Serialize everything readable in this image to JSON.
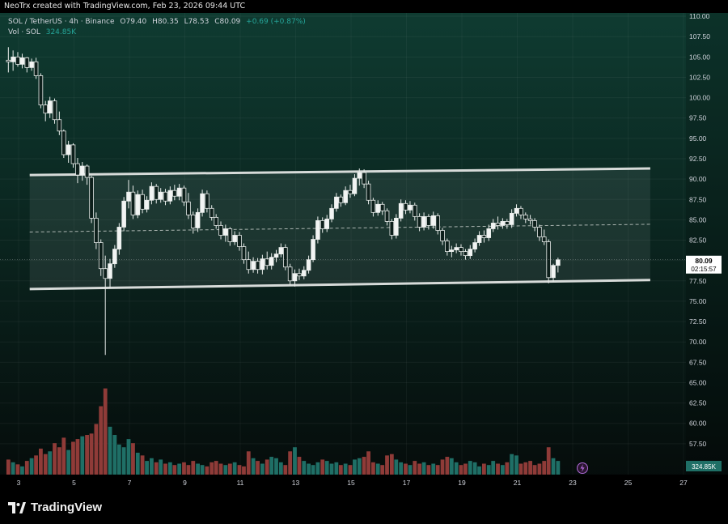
{
  "header": {
    "credit": "NeoTrx created with TradingView.com, Feb 23, 2026 09:44 UTC"
  },
  "legend": {
    "symbol": "SOL / TetherUS · 4h · Binance",
    "open": "O79.40",
    "high": "H80.35",
    "low": "L78.53",
    "close": "C80.09",
    "change": "+0.69 (+0.87%)",
    "volume_label": "Vol · SOL",
    "volume_value": "324.85K"
  },
  "price_axis": {
    "ticks": [
      "110.00",
      "107.50",
      "105.00",
      "102.50",
      "100.00",
      "97.50",
      "95.00",
      "92.50",
      "90.00",
      "87.50",
      "85.00",
      "82.50",
      "80.00",
      "77.50",
      "75.00",
      "72.50",
      "70.00",
      "67.50",
      "65.00",
      "62.50",
      "60.00",
      "57.50"
    ],
    "last_price": "80.09",
    "countdown": "02:15:57",
    "volume_badge": "324.85K"
  },
  "time_axis": {
    "ticks": [
      "3",
      "5",
      "7",
      "9",
      "11",
      "13",
      "15",
      "17",
      "19",
      "21",
      "23",
      "25",
      "27"
    ]
  },
  "colors": {
    "up": "#26a69a",
    "down": "#ef5350",
    "vol_up": "#1f6f66",
    "vol_down": "#8f3b38",
    "bg_top": "#0f3b31",
    "bg_bottom": "#050b0a",
    "channel_line": "#d7dbd9",
    "channel_fill": "rgba(200,210,205,0.10)",
    "price_badge": "#ffffff"
  },
  "footer": {
    "brand": "TradingView",
    "brand_icon": "tradingview-logo-icon"
  },
  "chart_data": {
    "type": "candlestick",
    "title": "SOL / TetherUS · 4h · Binance",
    "ylim": [
      55,
      111
    ],
    "x_range": [
      2.6,
      27.1
    ],
    "channel": {
      "upper": [
        [
          3.4,
          90.5
        ],
        [
          25.8,
          91.3
        ]
      ],
      "lower": [
        [
          3.4,
          76.5
        ],
        [
          25.8,
          77.6
        ]
      ]
    },
    "candles": [
      {
        "t": 2.63,
        "o": 104.6,
        "h": 106.2,
        "l": 103.1,
        "c": 104.4
      },
      {
        "t": 2.8,
        "o": 104.4,
        "h": 105.8,
        "l": 103.3,
        "c": 105.0
      },
      {
        "t": 2.97,
        "o": 105.0,
        "h": 105.6,
        "l": 103.8,
        "c": 104.1
      },
      {
        "t": 3.13,
        "o": 104.1,
        "h": 105.4,
        "l": 103.6,
        "c": 104.9
      },
      {
        "t": 3.3,
        "o": 104.9,
        "h": 105.0,
        "l": 103.1,
        "c": 103.7
      },
      {
        "t": 3.47,
        "o": 103.7,
        "h": 104.8,
        "l": 103.3,
        "c": 104.4
      },
      {
        "t": 3.63,
        "o": 104.4,
        "h": 104.9,
        "l": 102.3,
        "c": 102.7
      },
      {
        "t": 3.8,
        "o": 102.7,
        "h": 103.0,
        "l": 98.7,
        "c": 99.1
      },
      {
        "t": 3.97,
        "o": 99.1,
        "h": 99.6,
        "l": 97.1,
        "c": 98.1
      },
      {
        "t": 4.13,
        "o": 98.1,
        "h": 100.1,
        "l": 97.5,
        "c": 99.6
      },
      {
        "t": 4.3,
        "o": 99.6,
        "h": 99.9,
        "l": 96.8,
        "c": 97.3
      },
      {
        "t": 4.47,
        "o": 97.3,
        "h": 98.3,
        "l": 95.4,
        "c": 95.9
      },
      {
        "t": 4.63,
        "o": 95.9,
        "h": 96.1,
        "l": 92.6,
        "c": 93.0
      },
      {
        "t": 4.8,
        "o": 93.0,
        "h": 94.7,
        "l": 92.0,
        "c": 94.2
      },
      {
        "t": 4.97,
        "o": 94.2,
        "h": 94.4,
        "l": 91.4,
        "c": 91.9
      },
      {
        "t": 5.13,
        "o": 91.9,
        "h": 92.6,
        "l": 89.5,
        "c": 90.5
      },
      {
        "t": 5.3,
        "o": 90.5,
        "h": 92.1,
        "l": 89.8,
        "c": 91.6
      },
      {
        "t": 5.47,
        "o": 91.6,
        "h": 91.8,
        "l": 89.3,
        "c": 90.2
      },
      {
        "t": 5.63,
        "o": 90.2,
        "h": 90.4,
        "l": 84.6,
        "c": 85.2
      },
      {
        "t": 5.8,
        "o": 85.2,
        "h": 85.9,
        "l": 81.4,
        "c": 82.2
      },
      {
        "t": 5.97,
        "o": 82.2,
        "h": 82.6,
        "l": 78.1,
        "c": 79.0
      },
      {
        "t": 6.13,
        "o": 79.0,
        "h": 80.6,
        "l": 68.4,
        "c": 77.8
      },
      {
        "t": 6.3,
        "o": 77.8,
        "h": 80.2,
        "l": 76.6,
        "c": 79.6
      },
      {
        "t": 6.47,
        "o": 79.6,
        "h": 81.9,
        "l": 79.1,
        "c": 81.4
      },
      {
        "t": 6.63,
        "o": 81.4,
        "h": 84.6,
        "l": 80.7,
        "c": 84.1
      },
      {
        "t": 6.8,
        "o": 84.1,
        "h": 87.8,
        "l": 83.6,
        "c": 87.3
      },
      {
        "t": 6.97,
        "o": 87.3,
        "h": 89.9,
        "l": 86.4,
        "c": 88.4
      },
      {
        "t": 7.13,
        "o": 88.4,
        "h": 89.2,
        "l": 85.1,
        "c": 85.6
      },
      {
        "t": 7.3,
        "o": 85.6,
        "h": 88.6,
        "l": 85.2,
        "c": 88.1
      },
      {
        "t": 7.47,
        "o": 88.1,
        "h": 88.7,
        "l": 85.8,
        "c": 86.3
      },
      {
        "t": 7.63,
        "o": 86.3,
        "h": 87.9,
        "l": 85.9,
        "c": 87.4
      },
      {
        "t": 7.8,
        "o": 87.4,
        "h": 89.6,
        "l": 86.9,
        "c": 89.1
      },
      {
        "t": 7.97,
        "o": 89.1,
        "h": 89.4,
        "l": 87.0,
        "c": 87.5
      },
      {
        "t": 8.13,
        "o": 87.5,
        "h": 88.9,
        "l": 87.1,
        "c": 88.4
      },
      {
        "t": 8.3,
        "o": 88.4,
        "h": 88.8,
        "l": 86.8,
        "c": 87.3
      },
      {
        "t": 8.47,
        "o": 87.3,
        "h": 89.1,
        "l": 86.9,
        "c": 88.6
      },
      {
        "t": 8.63,
        "o": 88.6,
        "h": 89.3,
        "l": 87.4,
        "c": 87.9
      },
      {
        "t": 8.8,
        "o": 87.9,
        "h": 89.4,
        "l": 87.4,
        "c": 88.9
      },
      {
        "t": 8.97,
        "o": 88.9,
        "h": 89.2,
        "l": 86.7,
        "c": 87.2
      },
      {
        "t": 9.13,
        "o": 87.2,
        "h": 88.3,
        "l": 85.1,
        "c": 85.6
      },
      {
        "t": 9.3,
        "o": 85.6,
        "h": 86.0,
        "l": 83.3,
        "c": 84.0
      },
      {
        "t": 9.47,
        "o": 84.0,
        "h": 86.4,
        "l": 83.5,
        "c": 85.9
      },
      {
        "t": 9.63,
        "o": 85.9,
        "h": 88.7,
        "l": 85.4,
        "c": 88.2
      },
      {
        "t": 9.8,
        "o": 88.2,
        "h": 88.6,
        "l": 85.9,
        "c": 86.4
      },
      {
        "t": 9.97,
        "o": 86.4,
        "h": 86.8,
        "l": 84.9,
        "c": 85.3
      },
      {
        "t": 10.13,
        "o": 85.3,
        "h": 85.7,
        "l": 83.9,
        "c": 84.3
      },
      {
        "t": 10.3,
        "o": 84.3,
        "h": 84.8,
        "l": 82.6,
        "c": 83.1
      },
      {
        "t": 10.47,
        "o": 83.1,
        "h": 84.4,
        "l": 82.3,
        "c": 83.9
      },
      {
        "t": 10.63,
        "o": 83.9,
        "h": 84.1,
        "l": 81.8,
        "c": 82.3
      },
      {
        "t": 10.8,
        "o": 82.3,
        "h": 83.6,
        "l": 81.9,
        "c": 83.1
      },
      {
        "t": 10.97,
        "o": 83.1,
        "h": 83.5,
        "l": 81.2,
        "c": 81.7
      },
      {
        "t": 11.13,
        "o": 81.7,
        "h": 82.1,
        "l": 79.6,
        "c": 80.1
      },
      {
        "t": 11.3,
        "o": 80.1,
        "h": 81.1,
        "l": 78.4,
        "c": 78.9
      },
      {
        "t": 11.47,
        "o": 78.9,
        "h": 80.4,
        "l": 78.5,
        "c": 79.9
      },
      {
        "t": 11.63,
        "o": 79.9,
        "h": 80.3,
        "l": 78.4,
        "c": 78.9
      },
      {
        "t": 11.8,
        "o": 78.9,
        "h": 80.7,
        "l": 78.3,
        "c": 80.2
      },
      {
        "t": 11.97,
        "o": 80.2,
        "h": 81.1,
        "l": 78.9,
        "c": 79.4
      },
      {
        "t": 12.13,
        "o": 79.4,
        "h": 80.9,
        "l": 78.9,
        "c": 80.4
      },
      {
        "t": 12.3,
        "o": 80.4,
        "h": 81.3,
        "l": 79.8,
        "c": 80.8
      },
      {
        "t": 12.47,
        "o": 80.8,
        "h": 82.1,
        "l": 80.4,
        "c": 81.6
      },
      {
        "t": 12.63,
        "o": 81.6,
        "h": 82.0,
        "l": 78.8,
        "c": 79.2
      },
      {
        "t": 12.8,
        "o": 79.2,
        "h": 79.6,
        "l": 77.0,
        "c": 77.5
      },
      {
        "t": 12.97,
        "o": 77.5,
        "h": 78.9,
        "l": 76.8,
        "c": 78.4
      },
      {
        "t": 13.13,
        "o": 78.4,
        "h": 79.0,
        "l": 77.6,
        "c": 78.1
      },
      {
        "t": 13.3,
        "o": 78.1,
        "h": 79.3,
        "l": 77.7,
        "c": 78.8
      },
      {
        "t": 13.47,
        "o": 78.8,
        "h": 80.6,
        "l": 78.4,
        "c": 80.1
      },
      {
        "t": 13.63,
        "o": 80.1,
        "h": 83.1,
        "l": 79.8,
        "c": 82.6
      },
      {
        "t": 13.8,
        "o": 82.6,
        "h": 85.4,
        "l": 82.1,
        "c": 84.9
      },
      {
        "t": 13.97,
        "o": 84.9,
        "h": 85.3,
        "l": 83.4,
        "c": 83.9
      },
      {
        "t": 14.13,
        "o": 83.9,
        "h": 85.6,
        "l": 83.5,
        "c": 85.1
      },
      {
        "t": 14.3,
        "o": 85.1,
        "h": 86.9,
        "l": 84.7,
        "c": 86.4
      },
      {
        "t": 14.47,
        "o": 86.4,
        "h": 88.3,
        "l": 86.0,
        "c": 87.8
      },
      {
        "t": 14.63,
        "o": 87.8,
        "h": 88.1,
        "l": 86.6,
        "c": 87.1
      },
      {
        "t": 14.8,
        "o": 87.1,
        "h": 89.1,
        "l": 86.8,
        "c": 88.6
      },
      {
        "t": 14.97,
        "o": 88.6,
        "h": 89.3,
        "l": 87.7,
        "c": 88.2
      },
      {
        "t": 15.13,
        "o": 88.2,
        "h": 90.6,
        "l": 87.9,
        "c": 90.1
      },
      {
        "t": 15.3,
        "o": 90.1,
        "h": 91.3,
        "l": 89.2,
        "c": 90.8
      },
      {
        "t": 15.47,
        "o": 90.8,
        "h": 91.2,
        "l": 88.9,
        "c": 89.4
      },
      {
        "t": 15.63,
        "o": 89.4,
        "h": 89.8,
        "l": 86.9,
        "c": 87.4
      },
      {
        "t": 15.8,
        "o": 87.4,
        "h": 87.7,
        "l": 85.4,
        "c": 85.9
      },
      {
        "t": 15.97,
        "o": 85.9,
        "h": 87.4,
        "l": 85.5,
        "c": 86.9
      },
      {
        "t": 16.13,
        "o": 86.9,
        "h": 87.2,
        "l": 85.6,
        "c": 86.1
      },
      {
        "t": 16.3,
        "o": 86.1,
        "h": 86.4,
        "l": 84.3,
        "c": 84.8
      },
      {
        "t": 16.47,
        "o": 84.8,
        "h": 85.1,
        "l": 82.6,
        "c": 83.1
      },
      {
        "t": 16.63,
        "o": 83.1,
        "h": 85.7,
        "l": 82.7,
        "c": 85.2
      },
      {
        "t": 16.8,
        "o": 85.2,
        "h": 87.5,
        "l": 84.8,
        "c": 87.0
      },
      {
        "t": 16.97,
        "o": 87.0,
        "h": 87.4,
        "l": 85.7,
        "c": 86.2
      },
      {
        "t": 17.13,
        "o": 86.2,
        "h": 87.3,
        "l": 85.8,
        "c": 86.8
      },
      {
        "t": 17.3,
        "o": 86.8,
        "h": 87.1,
        "l": 84.9,
        "c": 85.4
      },
      {
        "t": 17.47,
        "o": 85.4,
        "h": 85.8,
        "l": 83.6,
        "c": 84.1
      },
      {
        "t": 17.63,
        "o": 84.1,
        "h": 85.9,
        "l": 83.7,
        "c": 85.4
      },
      {
        "t": 17.8,
        "o": 85.4,
        "h": 85.7,
        "l": 83.8,
        "c": 84.3
      },
      {
        "t": 17.97,
        "o": 84.3,
        "h": 86.0,
        "l": 83.9,
        "c": 85.5
      },
      {
        "t": 18.13,
        "o": 85.5,
        "h": 85.8,
        "l": 83.2,
        "c": 83.7
      },
      {
        "t": 18.3,
        "o": 83.7,
        "h": 84.0,
        "l": 81.9,
        "c": 82.4
      },
      {
        "t": 18.47,
        "o": 82.4,
        "h": 82.7,
        "l": 80.6,
        "c": 81.1
      },
      {
        "t": 18.63,
        "o": 81.1,
        "h": 81.8,
        "l": 80.4,
        "c": 81.3
      },
      {
        "t": 18.8,
        "o": 81.3,
        "h": 82.1,
        "l": 80.9,
        "c": 81.6
      },
      {
        "t": 18.97,
        "o": 81.6,
        "h": 82.0,
        "l": 80.6,
        "c": 81.1
      },
      {
        "t": 19.13,
        "o": 81.1,
        "h": 81.4,
        "l": 80.1,
        "c": 80.6
      },
      {
        "t": 19.3,
        "o": 80.6,
        "h": 81.9,
        "l": 80.2,
        "c": 81.4
      },
      {
        "t": 19.47,
        "o": 81.4,
        "h": 82.7,
        "l": 81.0,
        "c": 82.2
      },
      {
        "t": 19.63,
        "o": 82.2,
        "h": 83.6,
        "l": 81.8,
        "c": 83.1
      },
      {
        "t": 19.8,
        "o": 83.1,
        "h": 83.7,
        "l": 82.2,
        "c": 82.8
      },
      {
        "t": 19.97,
        "o": 82.8,
        "h": 84.4,
        "l": 82.4,
        "c": 83.9
      },
      {
        "t": 20.13,
        "o": 83.9,
        "h": 85.1,
        "l": 83.5,
        "c": 84.6
      },
      {
        "t": 20.3,
        "o": 84.6,
        "h": 85.4,
        "l": 83.8,
        "c": 84.3
      },
      {
        "t": 20.47,
        "o": 84.3,
        "h": 85.2,
        "l": 83.9,
        "c": 84.8
      },
      {
        "t": 20.63,
        "o": 84.8,
        "h": 85.1,
        "l": 83.9,
        "c": 84.4
      },
      {
        "t": 20.8,
        "o": 84.4,
        "h": 86.3,
        "l": 84.0,
        "c": 85.8
      },
      {
        "t": 20.97,
        "o": 85.8,
        "h": 86.9,
        "l": 85.4,
        "c": 86.4
      },
      {
        "t": 21.13,
        "o": 86.4,
        "h": 86.7,
        "l": 85.1,
        "c": 85.6
      },
      {
        "t": 21.3,
        "o": 85.6,
        "h": 85.9,
        "l": 84.6,
        "c": 85.1
      },
      {
        "t": 21.47,
        "o": 85.1,
        "h": 85.6,
        "l": 84.4,
        "c": 84.9
      },
      {
        "t": 21.63,
        "o": 84.9,
        "h": 85.2,
        "l": 83.6,
        "c": 84.1
      },
      {
        "t": 21.8,
        "o": 84.1,
        "h": 84.4,
        "l": 82.4,
        "c": 82.9
      },
      {
        "t": 21.97,
        "o": 82.9,
        "h": 83.8,
        "l": 81.9,
        "c": 82.3
      },
      {
        "t": 22.13,
        "o": 82.3,
        "h": 82.6,
        "l": 77.2,
        "c": 77.9
      },
      {
        "t": 22.3,
        "o": 77.9,
        "h": 79.6,
        "l": 77.4,
        "c": 79.4
      },
      {
        "t": 22.47,
        "o": 79.4,
        "h": 80.35,
        "l": 78.53,
        "c": 80.09
      }
    ],
    "volume_ylim": [
      0,
      180
    ],
    "volume": [
      22,
      18,
      15,
      12,
      20,
      24,
      28,
      38,
      30,
      34,
      46,
      40,
      54,
      36,
      48,
      52,
      56,
      58,
      60,
      74,
      100,
      126,
      70,
      58,
      44,
      40,
      52,
      46,
      32,
      28,
      20,
      24,
      18,
      22,
      16,
      18,
      14,
      16,
      18,
      14,
      20,
      16,
      14,
      12,
      18,
      20,
      16,
      14,
      16,
      18,
      14,
      12,
      34,
      24,
      20,
      16,
      22,
      26,
      24,
      18,
      14,
      34,
      40,
      26,
      20,
      16,
      14,
      18,
      22,
      20,
      16,
      18,
      14,
      16,
      14,
      22,
      24,
      26,
      34,
      18,
      16,
      14,
      28,
      30,
      22,
      18,
      16,
      14,
      20,
      16,
      18,
      14,
      16,
      14,
      22,
      26,
      24,
      18,
      14,
      16,
      20,
      18,
      12,
      16,
      14,
      20,
      16,
      14,
      18,
      30,
      28,
      16,
      18,
      20,
      14,
      16,
      20,
      40,
      24,
      20
    ]
  }
}
